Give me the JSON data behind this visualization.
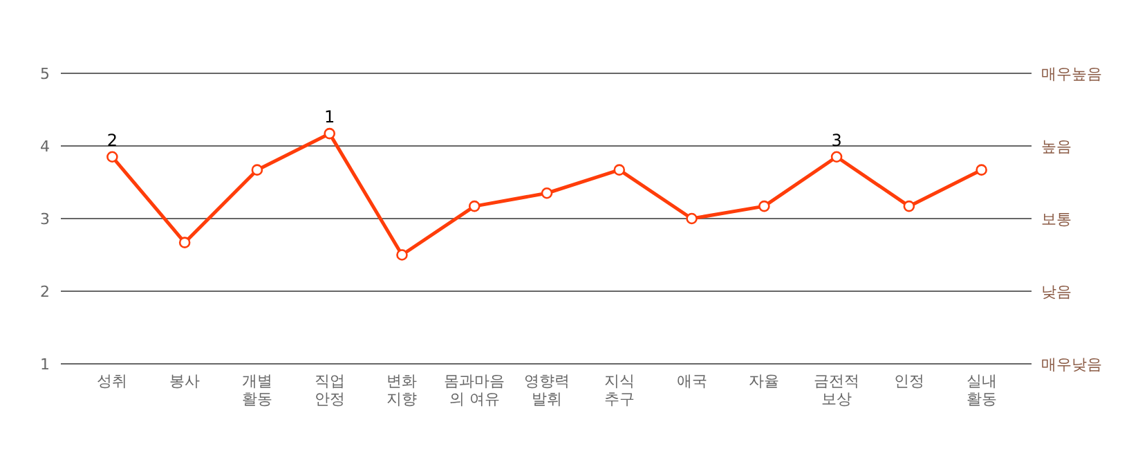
{
  "chart_data": {
    "type": "line",
    "categories": [
      "성취",
      "봉사",
      "개별\n활동",
      "직업\n안정",
      "변화\n지향",
      "몸과마음\n의 여유",
      "영향력\n발휘",
      "지식\n추구",
      "애국",
      "자율",
      "금전적\n보상",
      "인정",
      "실내\n활동"
    ],
    "series": [
      {
        "color": "#ff3d0a",
        "values": [
          3.85,
          2.67,
          3.67,
          4.17,
          2.5,
          3.17,
          3.35,
          3.67,
          3.0,
          3.17,
          3.85,
          3.17,
          3.67
        ]
      }
    ],
    "ylim": [
      1,
      5
    ],
    "yticks": [
      1,
      2,
      3,
      4,
      5
    ],
    "grid": "y",
    "annotations": [
      {
        "text": "2",
        "x": "성취",
        "y": 3.85
      },
      {
        "text": "1",
        "x": "직업\n안정",
        "y": 4.17
      },
      {
        "text": "3",
        "x": "금전적\n보상",
        "y": 3.85
      },
      "매우높음",
      "높음",
      "보통",
      "낮음",
      "매우낮음"
    ],
    "marker": "circle",
    "line_style": "solid"
  }
}
